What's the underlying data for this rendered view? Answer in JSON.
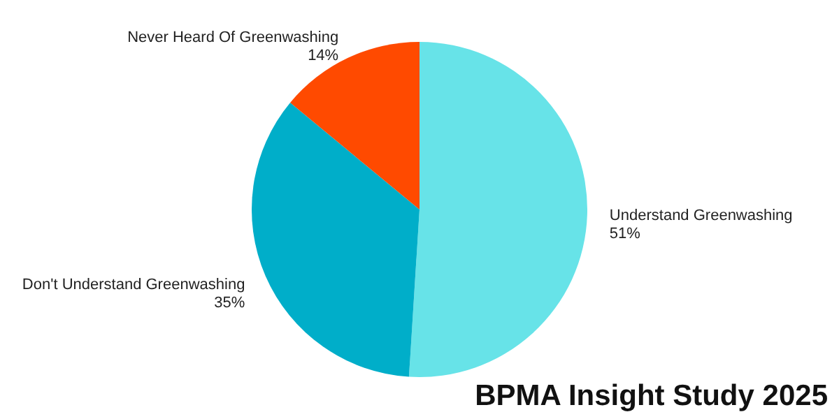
{
  "chart_data": {
    "type": "pie",
    "categories": [
      "Understand Greenwashing",
      "Don't Understand Greenwashing",
      "Never Heard Of Greenwashing"
    ],
    "values": [
      51,
      35,
      14
    ],
    "colors": [
      "#67e3e8",
      "#00aec9",
      "#ff4a00"
    ],
    "value_labels": [
      "51%",
      "35%",
      "14%"
    ],
    "annotations": [
      "BPMA Insight Study 2025"
    ],
    "legend": false
  }
}
